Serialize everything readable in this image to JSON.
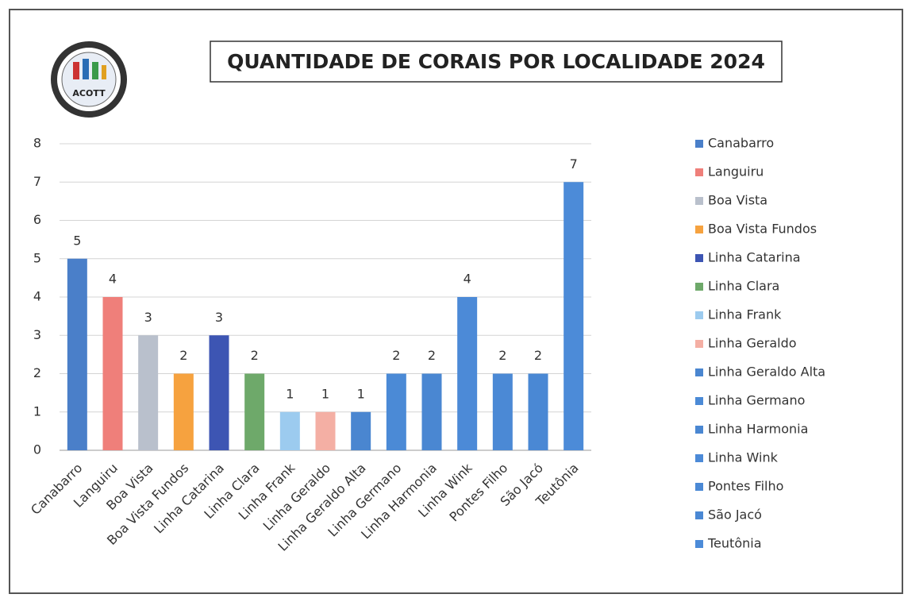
{
  "logo": {
    "text": "ACOTT"
  },
  "chart_data": {
    "type": "bar",
    "title": "QUANTIDADE DE CORAIS POR LOCALIDADE 2024",
    "categories": [
      "Canabarro",
      "Languiru",
      "Boa Vista",
      "Boa Vista Fundos",
      "Linha Catarina",
      "Linha Clara",
      "Linha Frank",
      "Linha Geraldo",
      "Linha Geraldo Alta",
      "Linha Germano",
      "Linha Harmonia",
      "Linha Wink",
      "Pontes Filho",
      "São Jacó",
      "Teutônia"
    ],
    "values": [
      5,
      4,
      3,
      2,
      3,
      2,
      1,
      1,
      1,
      2,
      2,
      4,
      2,
      2,
      7
    ],
    "colors": [
      "#4a7fc9",
      "#ef7f7a",
      "#b9c0cc",
      "#f6a23f",
      "#3d55b3",
      "#6ea96a",
      "#9ccbef",
      "#f4afa4",
      "#4a86d0",
      "#4b8ad6",
      "#4a87d2",
      "#4c8ad7",
      "#4b89d5",
      "#4a88d4",
      "#4c8bd8"
    ],
    "ylim": [
      0,
      8
    ],
    "yticks": [
      0,
      1,
      2,
      3,
      4,
      5,
      6,
      7,
      8
    ],
    "grid": true,
    "legend": "right"
  }
}
